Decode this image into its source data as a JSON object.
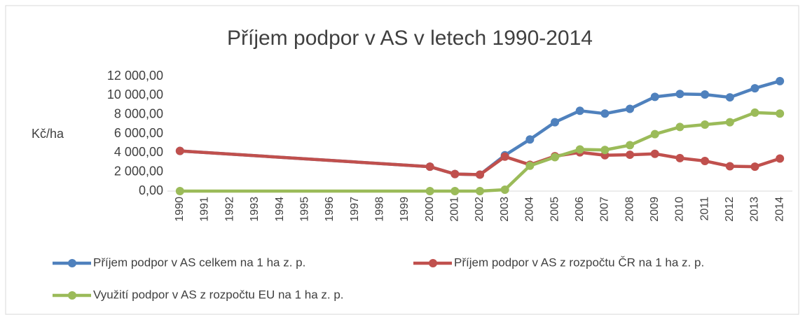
{
  "chart_data": {
    "type": "line",
    "title": "Příjem podpor v AS v letech 1990-2014",
    "y_label": "Kč/ha",
    "categories": [
      "1990",
      "1991",
      "1992",
      "1993",
      "1994",
      "1995",
      "1996",
      "1997",
      "1998",
      "1999",
      "2000",
      "2001",
      "2002",
      "2003",
      "2004",
      "2005",
      "2006",
      "2007",
      "2008",
      "2009",
      "2010",
      "2011",
      "2012",
      "2013",
      "2014"
    ],
    "series": [
      {
        "name": "Příjem podpor v AS celkem na 1 ha z. p.",
        "color": "#4f81bd",
        "values": [
          4200,
          null,
          null,
          null,
          null,
          null,
          null,
          null,
          null,
          null,
          2550,
          1780,
          1720,
          3750,
          5400,
          7200,
          8400,
          8100,
          8600,
          9850,
          10150,
          10100,
          9800,
          10750,
          11500
        ]
      },
      {
        "name": "Příjem podpor v  AS z rozpočtu ČR na 1 ha z. p.",
        "color": "#c0504d",
        "values": [
          4200,
          null,
          null,
          null,
          null,
          null,
          null,
          null,
          null,
          null,
          2550,
          1780,
          1720,
          3600,
          2750,
          3650,
          4050,
          3750,
          3800,
          3900,
          3450,
          3150,
          2600,
          2550,
          3400
        ]
      },
      {
        "name": "Využití podpor v AS z rozpočtu EU na 1 ha z. p.",
        "color": "#9bbb59",
        "values": [
          0,
          null,
          null,
          null,
          null,
          null,
          null,
          null,
          null,
          null,
          0,
          0,
          0,
          150,
          2650,
          3550,
          4350,
          4300,
          4800,
          5950,
          6700,
          6950,
          7200,
          8200,
          8100
        ]
      }
    ],
    "ylim": [
      0,
      12000
    ],
    "yticks": [
      {
        "value": 0,
        "label": "0,00"
      },
      {
        "value": 2000,
        "label": "2 000,00"
      },
      {
        "value": 4000,
        "label": "4 000,00"
      },
      {
        "value": 6000,
        "label": "6 000,00"
      },
      {
        "value": 8000,
        "label": "8 000,00"
      },
      {
        "value": 10000,
        "label": "10 000,00"
      },
      {
        "value": 12000,
        "label": "12 000,00"
      }
    ],
    "grid": false,
    "span_gaps": true,
    "legend": "bottom"
  }
}
